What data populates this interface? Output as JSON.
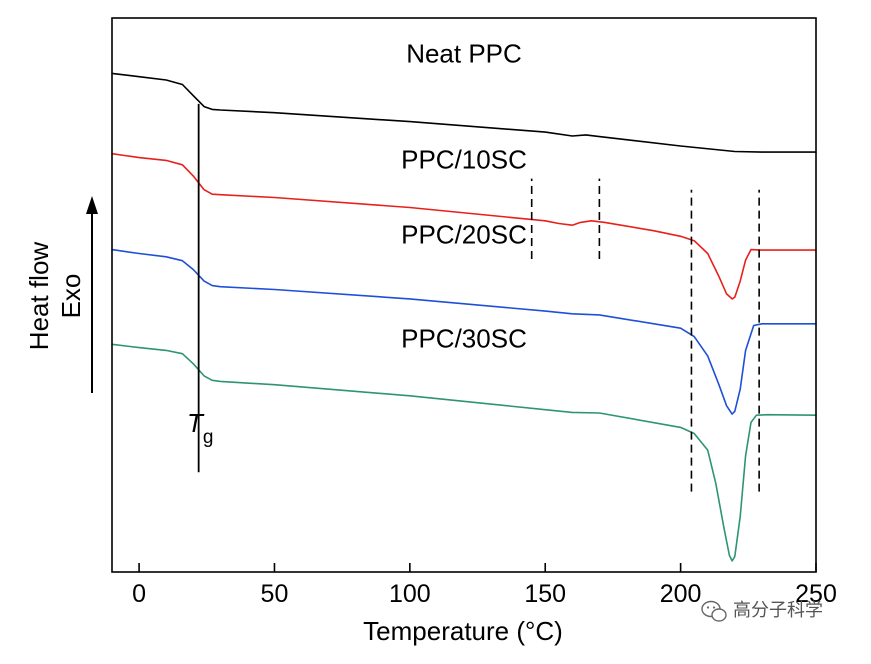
{
  "chart_data": {
    "type": "line",
    "title": "",
    "xlabel": "Temperature (°C)",
    "ylabel_line1": "Heat flow",
    "ylabel_line2": "Exo",
    "xlim": [
      -10,
      250
    ],
    "xticks": [
      0,
      50,
      100,
      150,
      200,
      250
    ],
    "y_units": "arbitrary (stacked heat flow, exo up)",
    "ylim": [
      0,
      100
    ],
    "tg_label": "T",
    "tg_subscript": "g",
    "tg_temperature": 22,
    "series": [
      {
        "name": "Neat PPC",
        "color": "#000000",
        "label_x": 120,
        "label_y": 92,
        "points": [
          [
            -10,
            90
          ],
          [
            0,
            89.4
          ],
          [
            10,
            88.8
          ],
          [
            16,
            88
          ],
          [
            20,
            86
          ],
          [
            24,
            84
          ],
          [
            27,
            83.5
          ],
          [
            30,
            83.4
          ],
          [
            50,
            82.9
          ],
          [
            100,
            81.3
          ],
          [
            150,
            79.4
          ],
          [
            160,
            78.7
          ],
          [
            165,
            78.9
          ],
          [
            170,
            78.6
          ],
          [
            200,
            76.9
          ],
          [
            220,
            75.9
          ],
          [
            230,
            75.8
          ],
          [
            250,
            75.8
          ]
        ]
      },
      {
        "name": "PPC/10SC",
        "color": "#e8201c",
        "label_x": 120,
        "label_y": 72.8,
        "points": [
          [
            -10,
            75.5
          ],
          [
            0,
            74.8
          ],
          [
            10,
            74.3
          ],
          [
            16,
            73.5
          ],
          [
            20,
            71.5
          ],
          [
            24,
            69
          ],
          [
            27,
            68.2
          ],
          [
            30,
            68.1
          ],
          [
            50,
            67.6
          ],
          [
            100,
            65.8
          ],
          [
            150,
            63.4
          ],
          [
            155,
            62.9
          ],
          [
            160,
            62.6
          ],
          [
            163,
            63.1
          ],
          [
            167,
            63.4
          ],
          [
            172,
            63.1
          ],
          [
            190,
            61.6
          ],
          [
            200,
            60.6
          ],
          [
            205,
            59.8
          ],
          [
            210,
            57.5
          ],
          [
            214,
            53.5
          ],
          [
            217,
            50.2
          ],
          [
            219,
            49.3
          ],
          [
            220,
            49.6
          ],
          [
            222,
            52.5
          ],
          [
            224,
            56.3
          ],
          [
            226,
            58.2
          ],
          [
            230,
            58.1
          ],
          [
            250,
            58.1
          ]
        ]
      },
      {
        "name": "PPC/20SC",
        "color": "#1f4fd8",
        "label_x": 120,
        "label_y": 59.3,
        "points": [
          [
            -10,
            58.2
          ],
          [
            0,
            57.5
          ],
          [
            10,
            56.9
          ],
          [
            16,
            56.2
          ],
          [
            20,
            54.6
          ],
          [
            24,
            52.5
          ],
          [
            27,
            51.7
          ],
          [
            30,
            51.5
          ],
          [
            50,
            51
          ],
          [
            100,
            49.3
          ],
          [
            150,
            47.1
          ],
          [
            160,
            46.6
          ],
          [
            170,
            46.4
          ],
          [
            200,
            44
          ],
          [
            205,
            42.5
          ],
          [
            210,
            39
          ],
          [
            214,
            34
          ],
          [
            217,
            30
          ],
          [
            219,
            28.5
          ],
          [
            220,
            29
          ],
          [
            222,
            33
          ],
          [
            224,
            40
          ],
          [
            227,
            44.5
          ],
          [
            230,
            44.8
          ],
          [
            250,
            44.8
          ]
        ]
      },
      {
        "name": "PPC/30SC",
        "color": "#2e9473",
        "label_x": 120,
        "label_y": 40.5,
        "points": [
          [
            -10,
            41.1
          ],
          [
            0,
            40.5
          ],
          [
            10,
            40
          ],
          [
            16,
            39.4
          ],
          [
            20,
            37.6
          ],
          [
            24,
            35.4
          ],
          [
            27,
            34.6
          ],
          [
            30,
            34.4
          ],
          [
            50,
            33.8
          ],
          [
            100,
            31.8
          ],
          [
            150,
            29.3
          ],
          [
            160,
            28.8
          ],
          [
            170,
            28.7
          ],
          [
            200,
            26.1
          ],
          [
            205,
            25
          ],
          [
            210,
            22
          ],
          [
            213,
            16
          ],
          [
            216,
            8
          ],
          [
            218,
            3
          ],
          [
            219,
            2
          ],
          [
            220,
            2.8
          ],
          [
            222,
            10
          ],
          [
            224,
            21
          ],
          [
            226,
            27
          ],
          [
            228,
            28.3
          ],
          [
            232,
            28.4
          ],
          [
            250,
            28.3
          ]
        ]
      }
    ],
    "annotations": [
      {
        "type": "solid_vline",
        "name": "tg-line",
        "x": 22,
        "y_from": 18,
        "y_to": 84.5
      },
      {
        "type": "dashed_vline",
        "name": "ppc10-onset-dash-1",
        "x": 145,
        "y_from": 56.5,
        "y_to": 71
      },
      {
        "type": "dashed_vline",
        "name": "ppc10-onset-dash-2",
        "x": 170,
        "y_from": 56.5,
        "y_to": 71
      },
      {
        "type": "dashed_vline",
        "name": "melt-onset-dash",
        "x": 204,
        "y_from": 14.5,
        "y_to": 69
      },
      {
        "type": "dashed_vline",
        "name": "melt-end-dash",
        "x": 229,
        "y_from": 14.5,
        "y_to": 69
      }
    ]
  },
  "watermark": {
    "text": "高分子科学",
    "icon": "wechat-icon"
  }
}
